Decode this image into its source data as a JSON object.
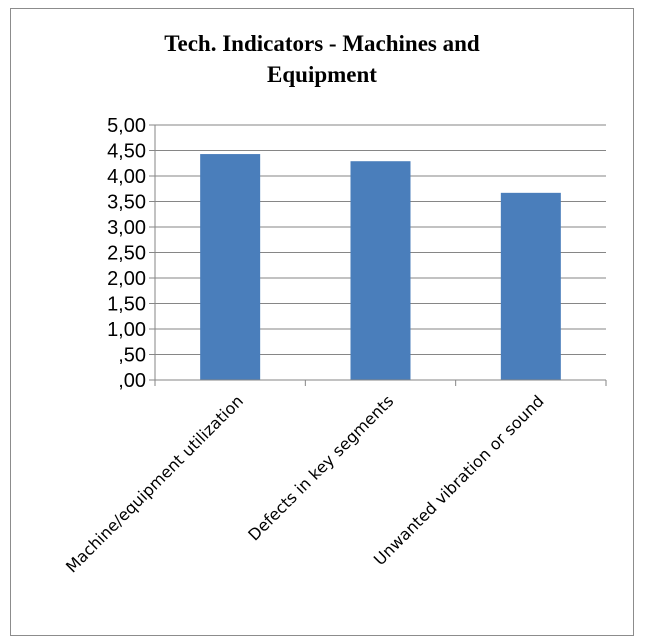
{
  "chart_data": {
    "type": "bar",
    "title": "Tech. Indicators - Machines and Equipment",
    "categories": [
      "Machine/equipment utilization",
      "Defects in key segments",
      "Unwanted vibration or sound"
    ],
    "values": [
      4.43,
      4.29,
      3.67
    ],
    "xlabel": "",
    "ylabel": "",
    "ylim": [
      0,
      5
    ],
    "yticks": [
      0,
      0.5,
      1.0,
      1.5,
      2.0,
      2.5,
      3.0,
      3.5,
      4.0,
      4.5,
      5.0
    ],
    "ytick_labels": [
      ",00",
      ",50",
      "1,00",
      "1,50",
      "2,00",
      "2,50",
      "3,00",
      "3,50",
      "4,00",
      "4,50",
      "5,00"
    ],
    "grid": true,
    "legend": "none",
    "bar_color": "#4a7ebb",
    "grid_color": "#868686"
  }
}
